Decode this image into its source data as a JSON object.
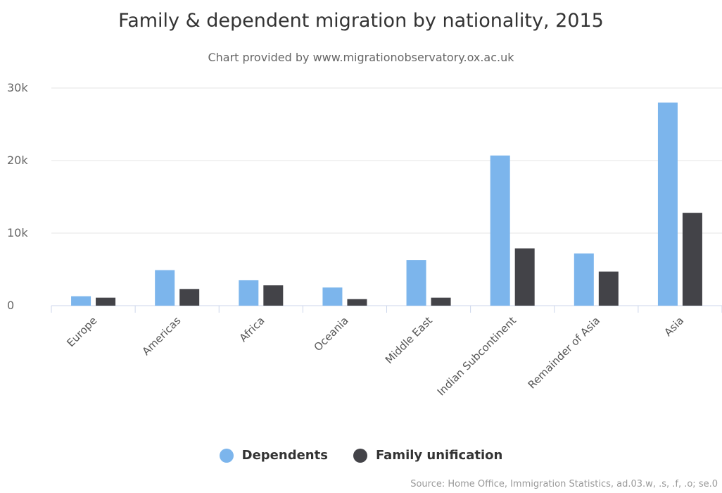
{
  "chart_data": {
    "type": "bar",
    "title": "Family & dependent migration by nationality, 2015",
    "subtitle": "Chart provided by www.migrationobservatory.ox.ac.uk",
    "categories": [
      "Europe",
      "Americas",
      "Africa",
      "Oceania",
      "Middle East",
      "Indian Subcontinent",
      "Remainder of Asia",
      "Asia"
    ],
    "series": [
      {
        "name": "Dependents",
        "color": "#7cb5ec",
        "values": [
          1300,
          4900,
          3500,
          2500,
          6300,
          20700,
          7200,
          28000
        ]
      },
      {
        "name": "Family unification",
        "color": "#434348",
        "values": [
          1100,
          2300,
          2800,
          900,
          1100,
          7900,
          4700,
          12800
        ]
      }
    ],
    "y_ticks": [
      "0",
      "10k",
      "20k",
      "30k"
    ],
    "ylim": [
      0,
      30000
    ],
    "grid": true,
    "legend_position": "bottom-center",
    "credits": "Source: Home Office, Immigration Statistics, ad.03.w, .s, .f, .o; se.0"
  }
}
